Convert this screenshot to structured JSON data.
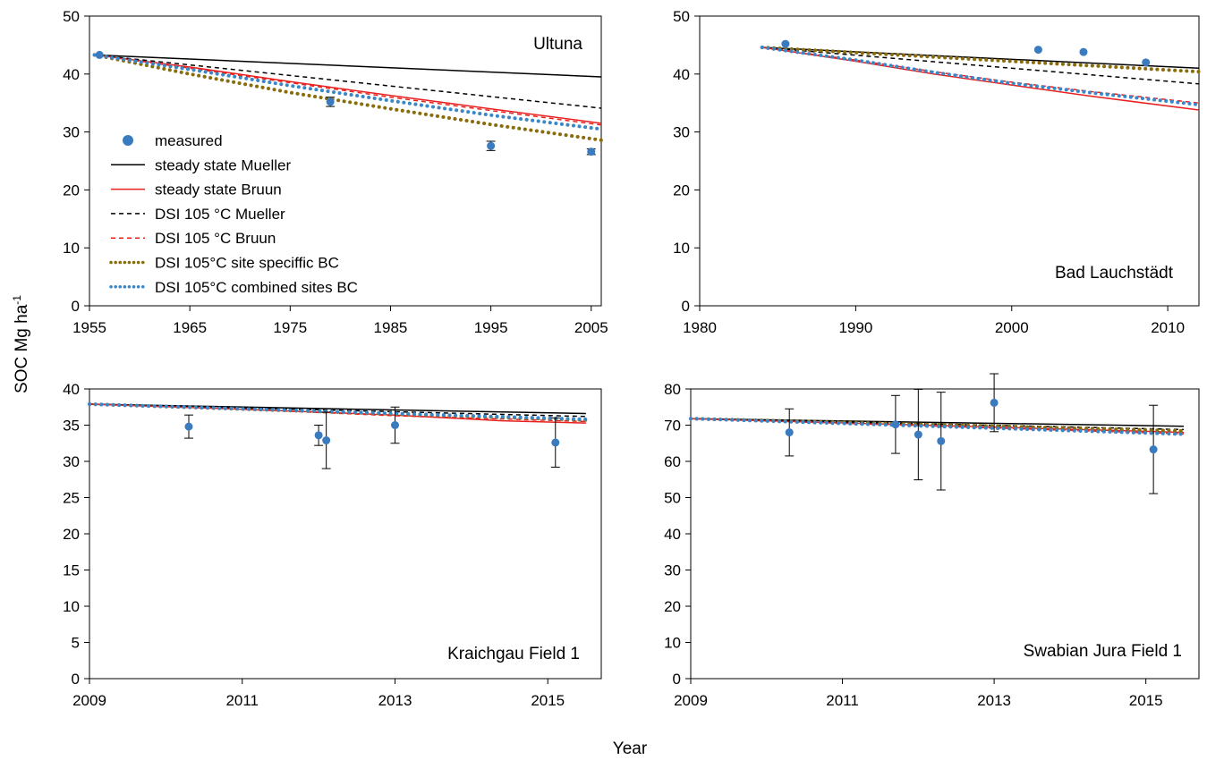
{
  "figure": {
    "ylabel_main": "SOC Mg ha",
    "ylabel_sup": "-1",
    "xlabel": "Year"
  },
  "series_styles": [
    {
      "key": "measured",
      "label": "measured",
      "color": "#3a7bbf",
      "kind": "marker"
    },
    {
      "key": "ss_mueller",
      "label": "steady state Mueller",
      "color": "#000000",
      "kind": "solid"
    },
    {
      "key": "ss_bruun",
      "label": "steady state Bruun",
      "color": "#e8201e",
      "kind": "solid"
    },
    {
      "key": "dsi_mueller",
      "label": "DSI 105 °C Mueller",
      "color": "#000000",
      "kind": "dashed"
    },
    {
      "key": "dsi_bruun",
      "label": "DSI 105 °C Bruun",
      "color": "#e8201e",
      "kind": "dashed"
    },
    {
      "key": "dsi_site",
      "label": "DSI 105°C site speciffic BC",
      "color": "#8a6d0b",
      "kind": "dotted"
    },
    {
      "key": "dsi_comb",
      "label": "DSI 105°C combined sites BC",
      "color": "#3a87c8",
      "kind": "dotted"
    }
  ],
  "chart_data": [
    {
      "type": "line",
      "title": "Ultuna",
      "xlim": [
        1955,
        2006
      ],
      "ylim": [
        0,
        50
      ],
      "xticks": [
        1955,
        1965,
        1975,
        1985,
        1995,
        2005
      ],
      "yticks": [
        0,
        10,
        20,
        30,
        40,
        50
      ],
      "legend": "left",
      "measured": [
        {
          "x": 1956,
          "y": 43.3,
          "err": 0
        },
        {
          "x": 1979,
          "y": 35.2,
          "err": 0.8
        },
        {
          "x": 1995,
          "y": 27.6,
          "err": 0.8
        },
        {
          "x": 2005,
          "y": 26.6,
          "err": 0.5
        }
      ],
      "lines": [
        {
          "key": "ss_mueller",
          "x": [
            1955.5,
            2006
          ],
          "y": [
            43.3,
            39.5
          ]
        },
        {
          "key": "ss_bruun",
          "x": [
            1955.5,
            1965,
            1975,
            1985,
            1995,
            2006
          ],
          "y": [
            43.3,
            41.2,
            38.7,
            36.3,
            34.0,
            31.5
          ]
        },
        {
          "key": "dsi_mueller",
          "x": [
            1955.5,
            2006
          ],
          "y": [
            43.3,
            34.1
          ]
        },
        {
          "key": "dsi_bruun",
          "x": [
            1955.5,
            1965,
            1975,
            1985,
            1995,
            2006
          ],
          "y": [
            43.3,
            41.0,
            38.5,
            36.0,
            33.7,
            31.2
          ]
        },
        {
          "key": "dsi_site",
          "x": [
            1955.5,
            1965,
            1975,
            1985,
            1995,
            2006
          ],
          "y": [
            43.3,
            40.0,
            36.8,
            34.0,
            31.3,
            28.6
          ]
        },
        {
          "key": "dsi_comb",
          "x": [
            1955.5,
            1965,
            1975,
            1985,
            1995,
            2006
          ],
          "y": [
            43.3,
            40.8,
            38.0,
            35.4,
            32.9,
            30.5
          ]
        }
      ]
    },
    {
      "type": "line",
      "title": "Bad Lauchstädt",
      "xlim": [
        1980,
        2012
      ],
      "ylim": [
        0,
        50
      ],
      "xticks": [
        1980,
        1990,
        2000,
        2010
      ],
      "yticks": [
        0,
        10,
        20,
        30,
        40,
        50
      ],
      "measured": [
        {
          "x": 1985.5,
          "y": 45.2,
          "err": 0
        },
        {
          "x": 2001.7,
          "y": 44.2,
          "err": 0
        },
        {
          "x": 2004.6,
          "y": 43.8,
          "err": 0
        },
        {
          "x": 2008.6,
          "y": 42.0,
          "err": 0
        }
      ],
      "lines": [
        {
          "key": "ss_mueller",
          "x": [
            1984,
            2012
          ],
          "y": [
            44.6,
            41.0
          ]
        },
        {
          "key": "ss_bruun",
          "x": [
            1984,
            1990,
            1995,
            2000,
            2005,
            2012
          ],
          "y": [
            44.6,
            42.2,
            40.0,
            38.1,
            36.2,
            33.8
          ]
        },
        {
          "key": "dsi_mueller",
          "x": [
            1984,
            2012
          ],
          "y": [
            44.6,
            38.3
          ]
        },
        {
          "key": "dsi_bruun",
          "x": [
            1984,
            1990,
            1995,
            2000,
            2005,
            2012
          ],
          "y": [
            44.6,
            42.4,
            40.4,
            38.6,
            37.0,
            35.0
          ]
        },
        {
          "key": "dsi_site",
          "x": [
            1984,
            2012
          ],
          "y": [
            44.6,
            40.4
          ]
        },
        {
          "key": "dsi_comb",
          "x": [
            1984,
            1990,
            1995,
            2000,
            2005,
            2012
          ],
          "y": [
            44.6,
            42.4,
            40.3,
            38.4,
            36.8,
            34.7
          ]
        }
      ]
    },
    {
      "type": "line",
      "title": "Kraichgau Field 1",
      "xlim": [
        2009,
        2015.7
      ],
      "ylim": [
        0,
        40
      ],
      "xticks": [
        2009,
        2011,
        2013,
        2015
      ],
      "yticks": [
        0,
        5,
        10,
        15,
        20,
        25,
        30,
        35,
        40
      ],
      "measured": [
        {
          "x": 2010.3,
          "y": 34.8,
          "err": 1.6
        },
        {
          "x": 2012.0,
          "y": 33.6,
          "err": 1.4
        },
        {
          "x": 2012.1,
          "y": 32.9,
          "err": 3.9
        },
        {
          "x": 2013.0,
          "y": 35.0,
          "err": 2.5
        },
        {
          "x": 2015.1,
          "y": 32.6,
          "err": 3.4
        }
      ],
      "lines": [
        {
          "key": "ss_mueller",
          "x": [
            2009,
            2015.5
          ],
          "y": [
            37.9,
            36.6
          ]
        },
        {
          "key": "ss_bruun",
          "x": [
            2009,
            2011,
            2013,
            2014.4,
            2015.5
          ],
          "y": [
            37.9,
            37.2,
            36.4,
            35.6,
            35.3
          ]
        },
        {
          "key": "dsi_mueller",
          "x": [
            2009,
            2015.5
          ],
          "y": [
            37.9,
            36.2
          ]
        },
        {
          "key": "dsi_bruun",
          "x": [
            2009,
            2011,
            2013,
            2015.5
          ],
          "y": [
            37.9,
            37.2,
            36.3,
            35.5
          ]
        },
        {
          "key": "dsi_site",
          "x": [
            2009,
            2015.5
          ],
          "y": [
            37.9,
            35.7
          ]
        },
        {
          "key": "dsi_comb",
          "x": [
            2009,
            2015.5
          ],
          "y": [
            37.9,
            35.8
          ]
        }
      ]
    },
    {
      "type": "line",
      "title": "Swabian Jura Field 1",
      "xlim": [
        2009,
        2015.7
      ],
      "ylim": [
        0,
        80
      ],
      "xticks": [
        2009,
        2011,
        2013,
        2015
      ],
      "yticks": [
        0,
        10,
        20,
        30,
        40,
        50,
        60,
        70,
        80
      ],
      "measured": [
        {
          "x": 2010.3,
          "y": 68.0,
          "err": 6.5
        },
        {
          "x": 2011.7,
          "y": 70.2,
          "err": 8.0
        },
        {
          "x": 2012.0,
          "y": 67.4,
          "err": 12.5
        },
        {
          "x": 2012.3,
          "y": 65.6,
          "err": 13.5
        },
        {
          "x": 2013.0,
          "y": 76.2,
          "err": 8.0
        },
        {
          "x": 2015.1,
          "y": 63.3,
          "err": 12.2
        }
      ],
      "lines": [
        {
          "key": "ss_mueller",
          "x": [
            2009,
            2015.5
          ],
          "y": [
            71.8,
            69.7
          ]
        },
        {
          "key": "ss_bruun",
          "x": [
            2009,
            2015.5
          ],
          "y": [
            71.8,
            68.0
          ]
        },
        {
          "key": "dsi_mueller",
          "x": [
            2009,
            2015.5
          ],
          "y": [
            71.8,
            68.8
          ]
        },
        {
          "key": "dsi_bruun",
          "x": [
            2009,
            2015.5
          ],
          "y": [
            71.8,
            67.6
          ]
        },
        {
          "key": "dsi_site",
          "x": [
            2009,
            2015.5
          ],
          "y": [
            71.8,
            68.4
          ]
        },
        {
          "key": "dsi_comb",
          "x": [
            2009,
            2015.5
          ],
          "y": [
            71.8,
            67.5
          ]
        }
      ]
    }
  ]
}
